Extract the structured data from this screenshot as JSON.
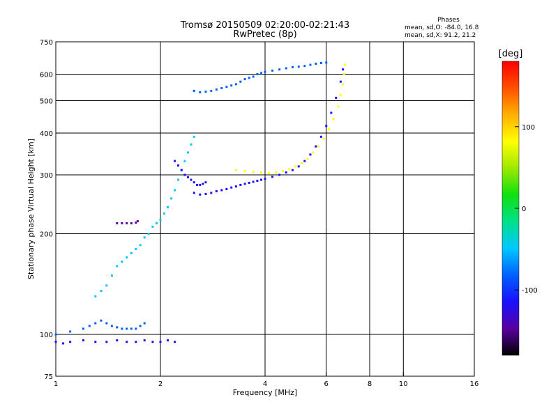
{
  "chart_data": {
    "type": "scatter",
    "title": "Tromsø 20150509 02:20:00-02:21:43",
    "subtitle": "RwPretec (8p)",
    "stats": {
      "heading": "Phases",
      "line_o": "mean, sd,O: -84.0, 16.8",
      "line_x": "mean, sd,X:  91.2, 21.2"
    },
    "xlabel": "Frequency [MHz]",
    "ylabel": "Stationary phase Virtual Height [km]",
    "xscale": "log",
    "yscale": "log",
    "xlim": [
      1,
      16
    ],
    "ylim": [
      75,
      750
    ],
    "x_ticks": [
      1,
      2,
      4,
      6,
      8,
      10,
      16
    ],
    "y_ticks": [
      75,
      100,
      200,
      300,
      400,
      500,
      600,
      750
    ],
    "x_grid": [
      2,
      4,
      6,
      8,
      10
    ],
    "y_grid": [
      100,
      200,
      300,
      400,
      500,
      600
    ],
    "grid": true,
    "colorbar": {
      "label": "[deg]",
      "range": [
        -180,
        180
      ],
      "ticks": [
        100,
        0,
        -100
      ],
      "colors": [
        "#000000",
        "#5a00a0",
        "#1a10ff",
        "#0060ff",
        "#00c8ff",
        "#00e08a",
        "#10e010",
        "#9ee800",
        "#ffff00",
        "#ffb000",
        "#ff5000",
        "#ff0000"
      ]
    },
    "series": [
      {
        "points": [
          [
            1.0,
            95
          ],
          [
            1.05,
            94
          ],
          [
            1.1,
            95
          ],
          [
            1.2,
            96
          ],
          [
            1.3,
            95
          ],
          [
            1.4,
            95
          ],
          [
            1.5,
            96
          ],
          [
            1.6,
            95
          ],
          [
            1.7,
            95
          ],
          [
            1.8,
            96
          ],
          [
            1.9,
            95
          ],
          [
            2.0,
            95
          ],
          [
            2.1,
            96
          ],
          [
            2.2,
            95
          ]
        ]
      },
      {
        "points": [
          [
            1.0,
            100
          ],
          [
            1.1,
            102
          ],
          [
            1.2,
            104
          ],
          [
            1.25,
            106
          ],
          [
            1.3,
            108
          ],
          [
            1.35,
            110
          ],
          [
            1.4,
            108
          ],
          [
            1.45,
            106
          ],
          [
            1.5,
            105
          ],
          [
            1.55,
            104
          ],
          [
            1.6,
            104
          ],
          [
            1.65,
            104
          ],
          [
            1.7,
            104
          ],
          [
            1.75,
            106
          ],
          [
            1.8,
            108
          ]
        ]
      },
      {
        "points": [
          [
            1.3,
            130
          ],
          [
            1.35,
            135
          ],
          [
            1.4,
            140
          ],
          [
            1.45,
            150
          ],
          [
            1.5,
            160
          ],
          [
            1.55,
            165
          ],
          [
            1.6,
            170
          ],
          [
            1.65,
            175
          ],
          [
            1.7,
            180
          ],
          [
            1.75,
            185
          ],
          [
            1.8,
            195
          ],
          [
            1.85,
            200
          ],
          [
            1.9,
            210
          ],
          [
            1.95,
            215
          ],
          [
            2.0,
            220
          ],
          [
            2.05,
            230
          ],
          [
            2.1,
            240
          ],
          [
            2.15,
            255
          ],
          [
            2.2,
            270
          ],
          [
            2.25,
            290
          ],
          [
            2.3,
            310
          ],
          [
            2.35,
            330
          ],
          [
            2.4,
            350
          ],
          [
            2.45,
            370
          ],
          [
            2.5,
            390
          ]
        ]
      },
      {
        "points": [
          [
            1.5,
            215
          ],
          [
            1.55,
            215
          ],
          [
            1.6,
            215
          ],
          [
            1.65,
            215
          ],
          [
            1.7,
            216
          ],
          [
            1.72,
            218
          ]
        ]
      },
      {
        "points": [
          [
            2.5,
            265
          ],
          [
            2.6,
            262
          ],
          [
            2.7,
            263
          ],
          [
            2.8,
            265
          ],
          [
            2.9,
            268
          ],
          [
            3.0,
            270
          ],
          [
            3.1,
            272
          ],
          [
            3.2,
            275
          ],
          [
            3.3,
            277
          ],
          [
            3.4,
            280
          ],
          [
            3.5,
            282
          ],
          [
            3.6,
            284
          ],
          [
            3.7,
            286
          ],
          [
            3.8,
            288
          ],
          [
            3.9,
            290
          ],
          [
            4.0,
            292
          ],
          [
            4.2,
            296
          ],
          [
            4.4,
            300
          ],
          [
            4.6,
            305
          ],
          [
            4.8,
            310
          ],
          [
            5.0,
            318
          ],
          [
            5.2,
            330
          ],
          [
            5.4,
            345
          ],
          [
            5.6,
            365
          ],
          [
            5.8,
            390
          ],
          [
            6.0,
            420
          ],
          [
            6.2,
            460
          ],
          [
            6.4,
            510
          ],
          [
            6.6,
            570
          ],
          [
            6.7,
            620
          ]
        ]
      },
      {
        "points": [
          [
            3.3,
            310
          ],
          [
            3.5,
            308
          ],
          [
            3.7,
            306
          ],
          [
            3.9,
            305
          ],
          [
            4.1,
            304
          ],
          [
            4.3,
            305
          ],
          [
            4.5,
            308
          ],
          [
            4.7,
            312
          ],
          [
            4.9,
            318
          ],
          [
            5.1,
            325
          ],
          [
            5.3,
            335
          ],
          [
            5.5,
            350
          ],
          [
            5.7,
            365
          ],
          [
            5.9,
            385
          ],
          [
            6.1,
            410
          ],
          [
            6.3,
            440
          ],
          [
            6.5,
            480
          ],
          [
            6.6,
            520
          ],
          [
            6.7,
            560
          ],
          [
            6.75,
            600
          ],
          [
            6.8,
            640
          ]
        ]
      },
      {
        "points": [
          [
            2.5,
            535
          ],
          [
            2.6,
            530
          ],
          [
            2.7,
            532
          ],
          [
            2.8,
            535
          ],
          [
            2.9,
            540
          ],
          [
            3.0,
            545
          ],
          [
            3.1,
            550
          ],
          [
            3.2,
            555
          ],
          [
            3.3,
            560
          ],
          [
            3.4,
            570
          ],
          [
            3.5,
            580
          ],
          [
            3.6,
            585
          ],
          [
            3.7,
            590
          ],
          [
            3.8,
            600
          ],
          [
            3.9,
            605
          ],
          [
            4.0,
            610
          ],
          [
            4.2,
            615
          ],
          [
            4.4,
            620
          ],
          [
            4.6,
            625
          ],
          [
            4.8,
            630
          ],
          [
            5.0,
            632
          ],
          [
            5.2,
            635
          ],
          [
            5.4,
            640
          ],
          [
            5.6,
            645
          ],
          [
            5.8,
            648
          ],
          [
            6.0,
            650
          ]
        ]
      },
      {
        "points": [
          [
            2.2,
            330
          ],
          [
            2.25,
            320
          ],
          [
            2.3,
            310
          ],
          [
            2.35,
            300
          ],
          [
            2.4,
            295
          ],
          [
            2.45,
            290
          ],
          [
            2.5,
            285
          ],
          [
            2.55,
            280
          ],
          [
            2.6,
            280
          ],
          [
            2.65,
            282
          ],
          [
            2.7,
            285
          ]
        ]
      }
    ]
  }
}
